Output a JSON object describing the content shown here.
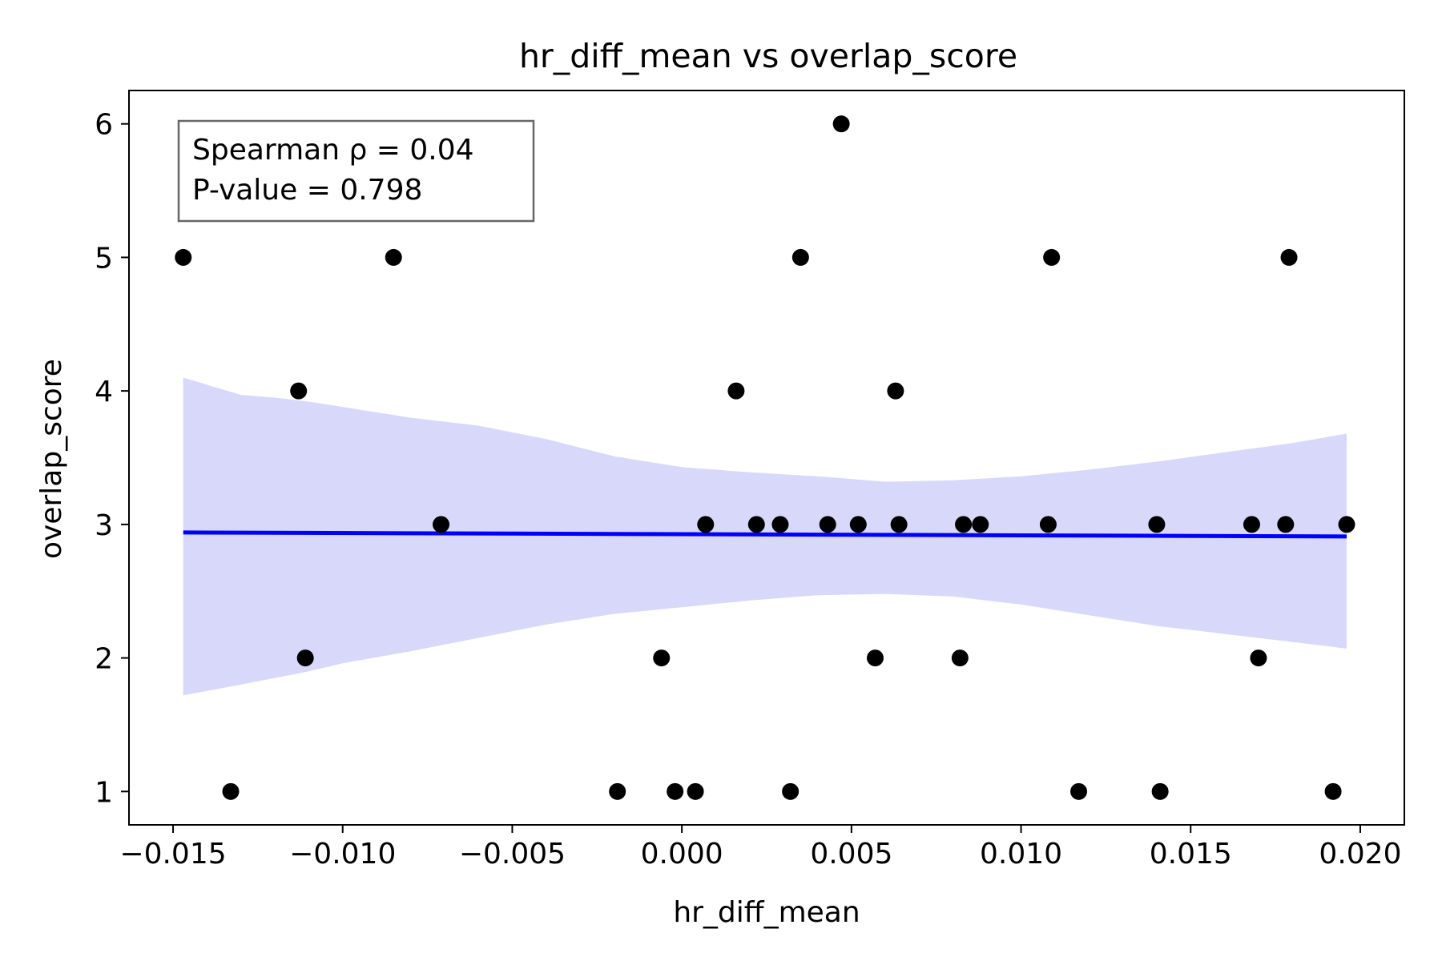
{
  "chart_data": {
    "type": "scatter",
    "title": "hr_diff_mean vs overlap_score",
    "xlabel": "hr_diff_mean",
    "ylabel": "overlap_score",
    "xlim": [
      -0.0163,
      0.0213
    ],
    "ylim": [
      0.75,
      6.25
    ],
    "x_ticks": [
      -0.015,
      -0.01,
      -0.005,
      0.0,
      0.005,
      0.01,
      0.015,
      0.02
    ],
    "x_tick_labels": [
      "−0.015",
      "−0.010",
      "−0.005",
      "0.000",
      "0.005",
      "0.010",
      "0.015",
      "0.020"
    ],
    "y_ticks": [
      1,
      2,
      3,
      4,
      5,
      6
    ],
    "y_tick_labels": [
      "1",
      "2",
      "3",
      "4",
      "5",
      "6"
    ],
    "grid": false,
    "annotation": {
      "lines": [
        "Spearman ρ = 0.04",
        "P-value = 0.798"
      ],
      "placement": "top-left"
    },
    "colors": {
      "points": "#000000",
      "regression_line": "#0000ff",
      "confidence_band": "#d8d8fb",
      "annotation_border": "#666666"
    },
    "points": [
      {
        "x": -0.0147,
        "y": 5
      },
      {
        "x": -0.0085,
        "y": 5
      },
      {
        "x": 0.0035,
        "y": 5
      },
      {
        "x": 0.0109,
        "y": 5
      },
      {
        "x": 0.0179,
        "y": 5
      },
      {
        "x": 0.0047,
        "y": 6
      },
      {
        "x": -0.0113,
        "y": 4
      },
      {
        "x": 0.0016,
        "y": 4
      },
      {
        "x": 0.0063,
        "y": 4
      },
      {
        "x": -0.0071,
        "y": 3
      },
      {
        "x": 0.0007,
        "y": 3
      },
      {
        "x": 0.0022,
        "y": 3
      },
      {
        "x": 0.0029,
        "y": 3
      },
      {
        "x": 0.0043,
        "y": 3
      },
      {
        "x": 0.0052,
        "y": 3
      },
      {
        "x": 0.0064,
        "y": 3
      },
      {
        "x": 0.0083,
        "y": 3
      },
      {
        "x": 0.0088,
        "y": 3
      },
      {
        "x": 0.0108,
        "y": 3
      },
      {
        "x": 0.014,
        "y": 3
      },
      {
        "x": 0.0168,
        "y": 3
      },
      {
        "x": 0.0178,
        "y": 3
      },
      {
        "x": 0.0196,
        "y": 3
      },
      {
        "x": -0.0111,
        "y": 2
      },
      {
        "x": -0.0006,
        "y": 2
      },
      {
        "x": 0.0057,
        "y": 2
      },
      {
        "x": 0.0082,
        "y": 2
      },
      {
        "x": 0.017,
        "y": 2
      },
      {
        "x": -0.0133,
        "y": 1
      },
      {
        "x": -0.0019,
        "y": 1
      },
      {
        "x": -0.0002,
        "y": 1
      },
      {
        "x": 0.0004,
        "y": 1
      },
      {
        "x": 0.0032,
        "y": 1
      },
      {
        "x": 0.0117,
        "y": 1
      },
      {
        "x": 0.0141,
        "y": 1
      },
      {
        "x": 0.0192,
        "y": 1
      }
    ],
    "regression_line": {
      "x": [
        -0.0147,
        0.0196
      ],
      "y": [
        2.94,
        2.91
      ]
    },
    "confidence_band": {
      "x": [
        -0.0147,
        -0.013,
        -0.012,
        -0.011,
        -0.01,
        -0.008,
        -0.006,
        -0.004,
        -0.002,
        0.0,
        0.002,
        0.004,
        0.006,
        0.008,
        0.01,
        0.012,
        0.014,
        0.016,
        0.018,
        0.0196
      ],
      "upper": [
        4.1,
        3.97,
        3.95,
        3.92,
        3.88,
        3.8,
        3.74,
        3.64,
        3.51,
        3.43,
        3.39,
        3.36,
        3.32,
        3.33,
        3.36,
        3.41,
        3.47,
        3.54,
        3.61,
        3.68
      ],
      "lower": [
        1.72,
        1.8,
        1.85,
        1.9,
        1.96,
        2.05,
        2.15,
        2.25,
        2.33,
        2.38,
        2.43,
        2.47,
        2.48,
        2.46,
        2.4,
        2.32,
        2.24,
        2.18,
        2.12,
        2.07
      ]
    }
  }
}
